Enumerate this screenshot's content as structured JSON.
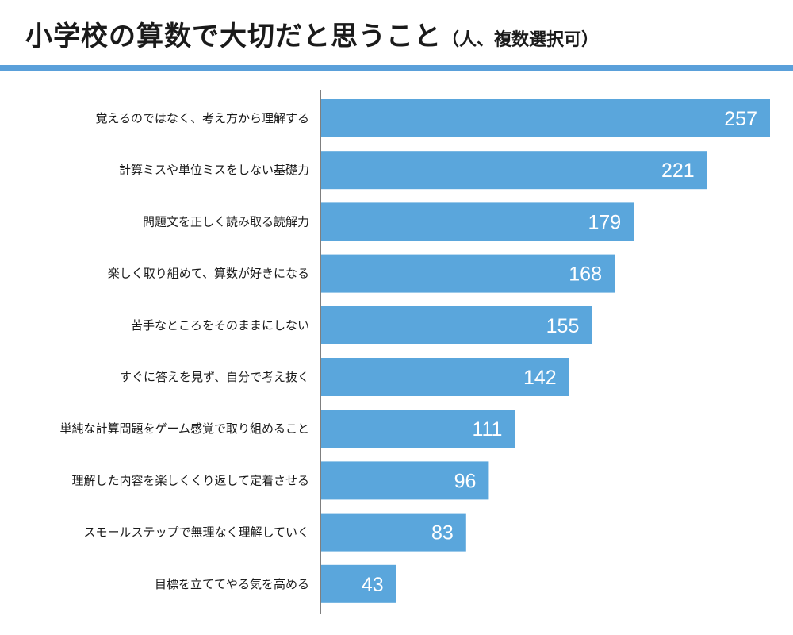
{
  "title": {
    "main": "小学校の算数で大切だと思うこと",
    "sub": "（人、複数選択可）"
  },
  "colors": {
    "bar": "#5aa6dc",
    "rule": "#5aa0da",
    "axis": "#555555"
  },
  "chart_data": {
    "type": "bar",
    "orientation": "horizontal",
    "categories": [
      "覚えるのではなく、考え方から理解する",
      "計算ミスや単位ミスをしない基礎力",
      "問題文を正しく読み取る読解力",
      "楽しく取り組めて、算数が好きになる",
      "苦手なところをそのままにしない",
      "すぐに答えを見ず、自分で考え抜く",
      "単純な計算問題をゲーム感覚で取り組めること",
      "理解した内容を楽しくくり返して定着させる",
      "スモールステップで無理なく理解していく",
      "目標を立ててやる気を高める"
    ],
    "values": [
      257,
      221,
      179,
      168,
      155,
      142,
      111,
      96,
      83,
      43
    ],
    "xlim": [
      0,
      260
    ],
    "grid": false,
    "legend": "none"
  }
}
